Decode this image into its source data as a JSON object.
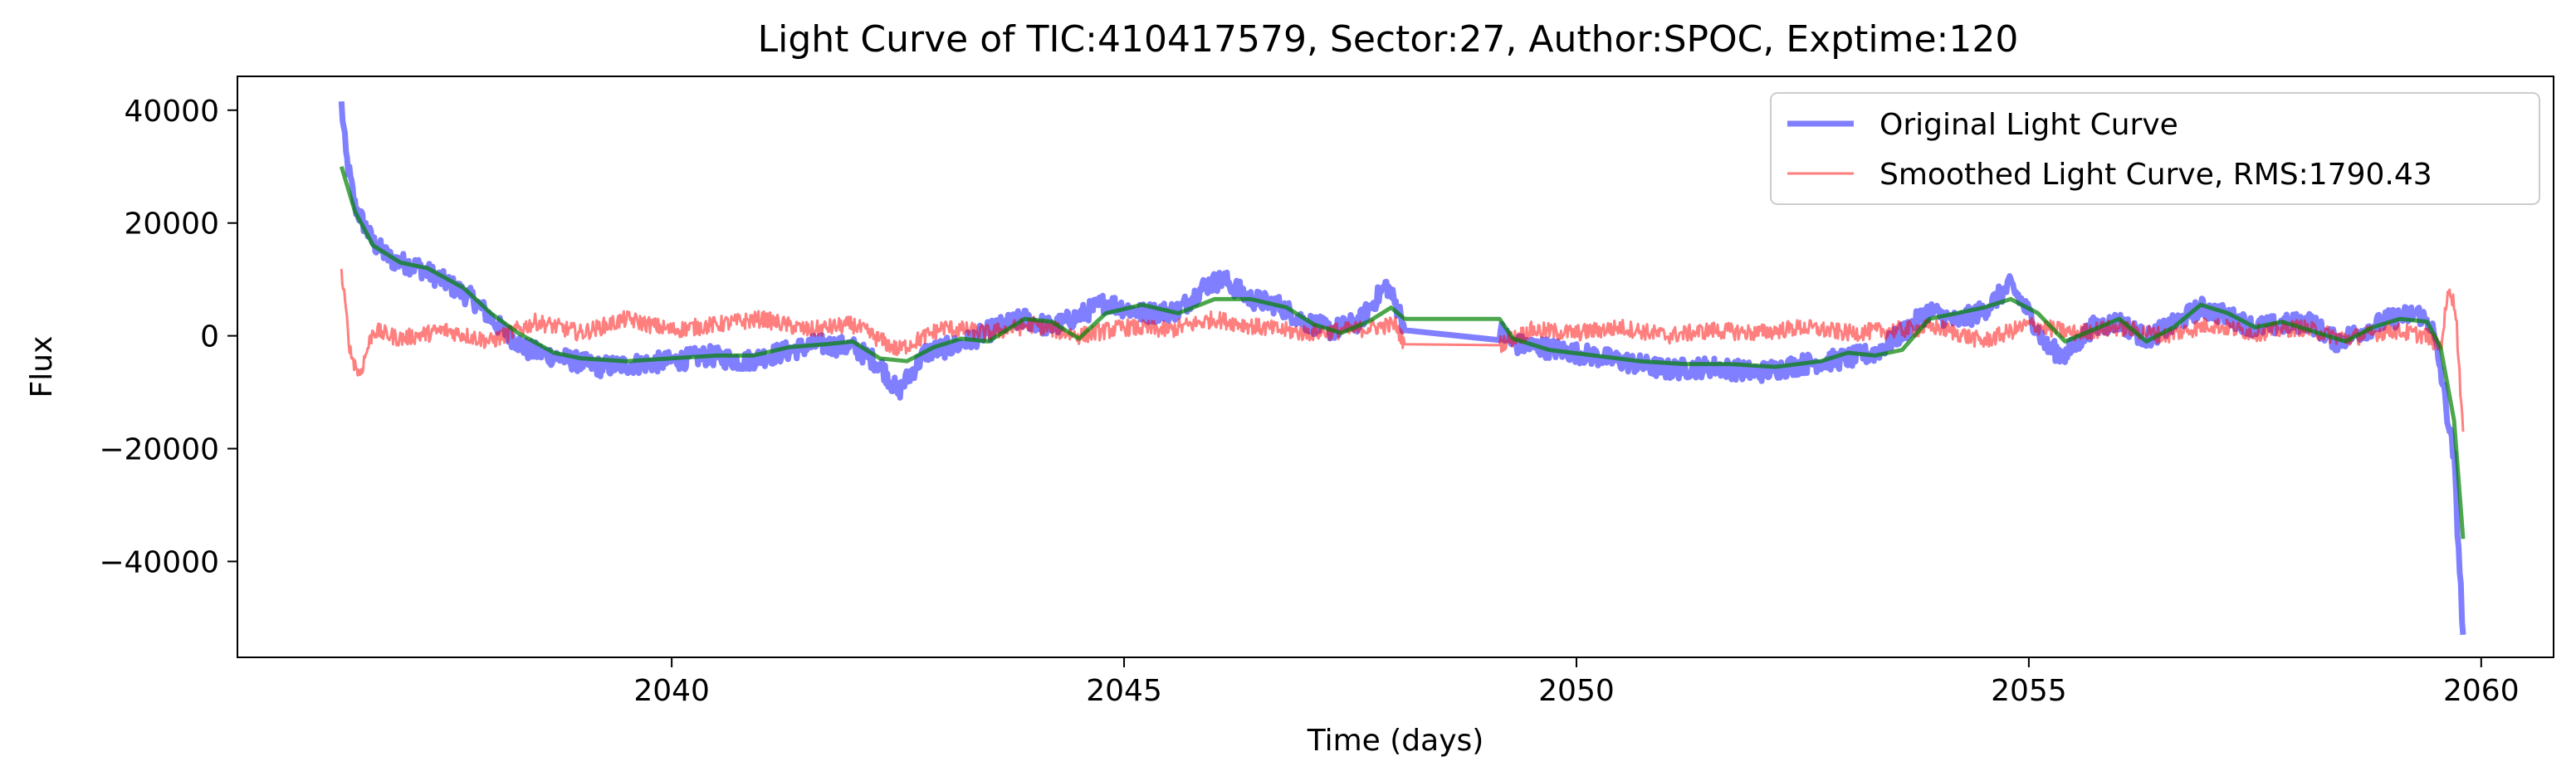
{
  "chart_data": {
    "type": "line",
    "title": "Light Curve of TIC:410417579, Sector:27, Author:SPOC, Exptime:120",
    "xlabel": "Time (days)",
    "ylabel": "Flux",
    "xlim": [
      2035.2,
      2060.8
    ],
    "ylim": [
      -57000,
      46000
    ],
    "x_ticks": [
      2040,
      2045,
      2050,
      2055,
      2060
    ],
    "y_ticks": [
      40000,
      20000,
      0,
      -20000,
      -40000
    ],
    "x_tick_labels": [
      "2040",
      "2045",
      "2050",
      "2055",
      "2060"
    ],
    "y_tick_labels": [
      "40000",
      "20000",
      "0",
      "−20000",
      "−40000"
    ],
    "gap": [
      2048.1,
      2049.15
    ],
    "legend_position": "top-right",
    "series": [
      {
        "name": "Original Light Curve",
        "color": "#0000ff",
        "points": [
          [
            2036.35,
            41000
          ],
          [
            2036.4,
            32000
          ],
          [
            2036.5,
            23000
          ],
          [
            2036.7,
            16500
          ],
          [
            2036.9,
            13500
          ],
          [
            2037.2,
            12200
          ],
          [
            2037.5,
            9500
          ],
          [
            2037.8,
            6500
          ],
          [
            2038.1,
            1500
          ],
          [
            2038.4,
            -2500
          ],
          [
            2038.8,
            -4000
          ],
          [
            2039.2,
            -5500
          ],
          [
            2039.6,
            -5000
          ],
          [
            2040.0,
            -4500
          ],
          [
            2040.4,
            -3500
          ],
          [
            2040.8,
            -4500
          ],
          [
            2041.2,
            -3000
          ],
          [
            2041.6,
            -1500
          ],
          [
            2042.0,
            -2000
          ],
          [
            2042.3,
            -5000
          ],
          [
            2042.5,
            -10000
          ],
          [
            2042.8,
            -3000
          ],
          [
            2043.2,
            -1500
          ],
          [
            2043.6,
            1500
          ],
          [
            2043.9,
            3000
          ],
          [
            2044.2,
            1500
          ],
          [
            2044.5,
            3500
          ],
          [
            2044.8,
            6000
          ],
          [
            2045.2,
            4000
          ],
          [
            2045.6,
            4500
          ],
          [
            2045.9,
            9000
          ],
          [
            2046.1,
            10000
          ],
          [
            2046.4,
            6500
          ],
          [
            2046.7,
            5500
          ],
          [
            2047.0,
            2500
          ],
          [
            2047.3,
            1000
          ],
          [
            2047.6,
            2500
          ],
          [
            2047.9,
            9000
          ],
          [
            2048.05,
            4000
          ],
          [
            2048.1,
            1000
          ],
          [
            2049.15,
            1000
          ],
          [
            2049.3,
            -1500
          ],
          [
            2049.6,
            -2000
          ],
          [
            2050.0,
            -3000
          ],
          [
            2050.5,
            -4500
          ],
          [
            2051.0,
            -6000
          ],
          [
            2051.5,
            -5500
          ],
          [
            2052.0,
            -6500
          ],
          [
            2052.5,
            -5000
          ],
          [
            2053.0,
            -4000
          ],
          [
            2053.3,
            -3000
          ],
          [
            2053.6,
            500
          ],
          [
            2053.9,
            4500
          ],
          [
            2054.2,
            2500
          ],
          [
            2054.5,
            4500
          ],
          [
            2054.8,
            9000
          ],
          [
            2055.0,
            4000
          ],
          [
            2055.2,
            -2000
          ],
          [
            2055.4,
            -3500
          ],
          [
            2055.7,
            1500
          ],
          [
            2056.0,
            2500
          ],
          [
            2056.3,
            -500
          ],
          [
            2056.6,
            2000
          ],
          [
            2056.9,
            5000
          ],
          [
            2057.2,
            3500
          ],
          [
            2057.5,
            1500
          ],
          [
            2057.8,
            2000
          ],
          [
            2058.1,
            2500
          ],
          [
            2058.4,
            -1000
          ],
          [
            2058.7,
            1000
          ],
          [
            2059.0,
            3000
          ],
          [
            2059.3,
            4000
          ],
          [
            2059.45,
            2000
          ],
          [
            2059.55,
            -6000
          ],
          [
            2059.7,
            -22000
          ],
          [
            2059.8,
            -53000
          ]
        ]
      },
      {
        "name": "Smoothed Light Curve, RMS:1790.43",
        "color": "#ff0000",
        "points": [
          [
            2036.35,
            11000
          ],
          [
            2036.45,
            -3000
          ],
          [
            2036.55,
            -7000
          ],
          [
            2036.7,
            1000
          ],
          [
            2037.0,
            -500
          ],
          [
            2037.5,
            1000
          ],
          [
            2038.0,
            -1000
          ],
          [
            2038.5,
            2500
          ],
          [
            2039.0,
            500
          ],
          [
            2039.5,
            3000
          ],
          [
            2040.0,
            1000
          ],
          [
            2040.5,
            2000
          ],
          [
            2041.0,
            3000
          ],
          [
            2041.5,
            1000
          ],
          [
            2042.0,
            2000
          ],
          [
            2042.5,
            -2500
          ],
          [
            2043.0,
            1500
          ],
          [
            2043.5,
            500
          ],
          [
            2044.0,
            2000
          ],
          [
            2044.5,
            0
          ],
          [
            2045.0,
            1500
          ],
          [
            2045.5,
            1000
          ],
          [
            2046.0,
            3000
          ],
          [
            2046.5,
            1500
          ],
          [
            2047.0,
            500
          ],
          [
            2047.5,
            1000
          ],
          [
            2048.0,
            2000
          ],
          [
            2048.1,
            -1500
          ],
          [
            2049.15,
            -1500
          ],
          [
            2049.5,
            1000
          ],
          [
            2050.0,
            500
          ],
          [
            2050.5,
            1500
          ],
          [
            2051.0,
            0
          ],
          [
            2051.5,
            1000
          ],
          [
            2052.0,
            500
          ],
          [
            2052.5,
            1500
          ],
          [
            2053.0,
            500
          ],
          [
            2053.5,
            1000
          ],
          [
            2054.0,
            1500
          ],
          [
            2054.5,
            -1000
          ],
          [
            2055.0,
            2000
          ],
          [
            2055.5,
            500
          ],
          [
            2056.0,
            1500
          ],
          [
            2056.5,
            0
          ],
          [
            2057.0,
            2000
          ],
          [
            2057.5,
            500
          ],
          [
            2058.0,
            1500
          ],
          [
            2058.5,
            -500
          ],
          [
            2059.0,
            1000
          ],
          [
            2059.4,
            0
          ],
          [
            2059.55,
            -2000
          ],
          [
            2059.65,
            9000
          ],
          [
            2059.72,
            4000
          ],
          [
            2059.8,
            -17000
          ]
        ]
      },
      {
        "name": "",
        "color": "#008000",
        "points": [
          [
            2036.35,
            30000
          ],
          [
            2036.5,
            22000
          ],
          [
            2036.7,
            16000
          ],
          [
            2037.0,
            13000
          ],
          [
            2037.3,
            12000
          ],
          [
            2037.7,
            8500
          ],
          [
            2038.0,
            4000
          ],
          [
            2038.3,
            500
          ],
          [
            2038.7,
            -3000
          ],
          [
            2039.0,
            -4000
          ],
          [
            2039.5,
            -4500
          ],
          [
            2040.0,
            -4000
          ],
          [
            2040.5,
            -3500
          ],
          [
            2040.9,
            -3500
          ],
          [
            2041.3,
            -2000
          ],
          [
            2041.7,
            -1500
          ],
          [
            2042.0,
            -1000
          ],
          [
            2042.3,
            -4000
          ],
          [
            2042.6,
            -4500
          ],
          [
            2042.9,
            -2000
          ],
          [
            2043.2,
            -500
          ],
          [
            2043.5,
            -1000
          ],
          [
            2043.9,
            3000
          ],
          [
            2044.2,
            2500
          ],
          [
            2044.5,
            -500
          ],
          [
            2044.8,
            4000
          ],
          [
            2045.2,
            5500
          ],
          [
            2045.6,
            4000
          ],
          [
            2046.0,
            6500
          ],
          [
            2046.4,
            6500
          ],
          [
            2046.8,
            5000
          ],
          [
            2047.1,
            2000
          ],
          [
            2047.4,
            500
          ],
          [
            2047.7,
            2500
          ],
          [
            2047.95,
            5000
          ],
          [
            2048.1,
            3000
          ],
          [
            2049.15,
            3000
          ],
          [
            2049.3,
            -500
          ],
          [
            2049.7,
            -2500
          ],
          [
            2050.2,
            -3500
          ],
          [
            2050.7,
            -4500
          ],
          [
            2051.2,
            -5000
          ],
          [
            2051.7,
            -5000
          ],
          [
            2052.2,
            -5500
          ],
          [
            2052.7,
            -4500
          ],
          [
            2053.0,
            -3000
          ],
          [
            2053.3,
            -3500
          ],
          [
            2053.6,
            -2500
          ],
          [
            2053.9,
            3000
          ],
          [
            2054.2,
            4000
          ],
          [
            2054.5,
            5000
          ],
          [
            2054.8,
            6500
          ],
          [
            2055.1,
            4000
          ],
          [
            2055.4,
            -1000
          ],
          [
            2055.7,
            1000
          ],
          [
            2056.0,
            3000
          ],
          [
            2056.3,
            -1000
          ],
          [
            2056.6,
            1500
          ],
          [
            2056.9,
            5500
          ],
          [
            2057.2,
            4000
          ],
          [
            2057.5,
            1500
          ],
          [
            2057.8,
            2500
          ],
          [
            2058.1,
            1000
          ],
          [
            2058.5,
            -1000
          ],
          [
            2058.8,
            1500
          ],
          [
            2059.1,
            3000
          ],
          [
            2059.4,
            2500
          ],
          [
            2059.55,
            -2000
          ],
          [
            2059.7,
            -15000
          ],
          [
            2059.8,
            -36000
          ]
        ]
      }
    ]
  }
}
